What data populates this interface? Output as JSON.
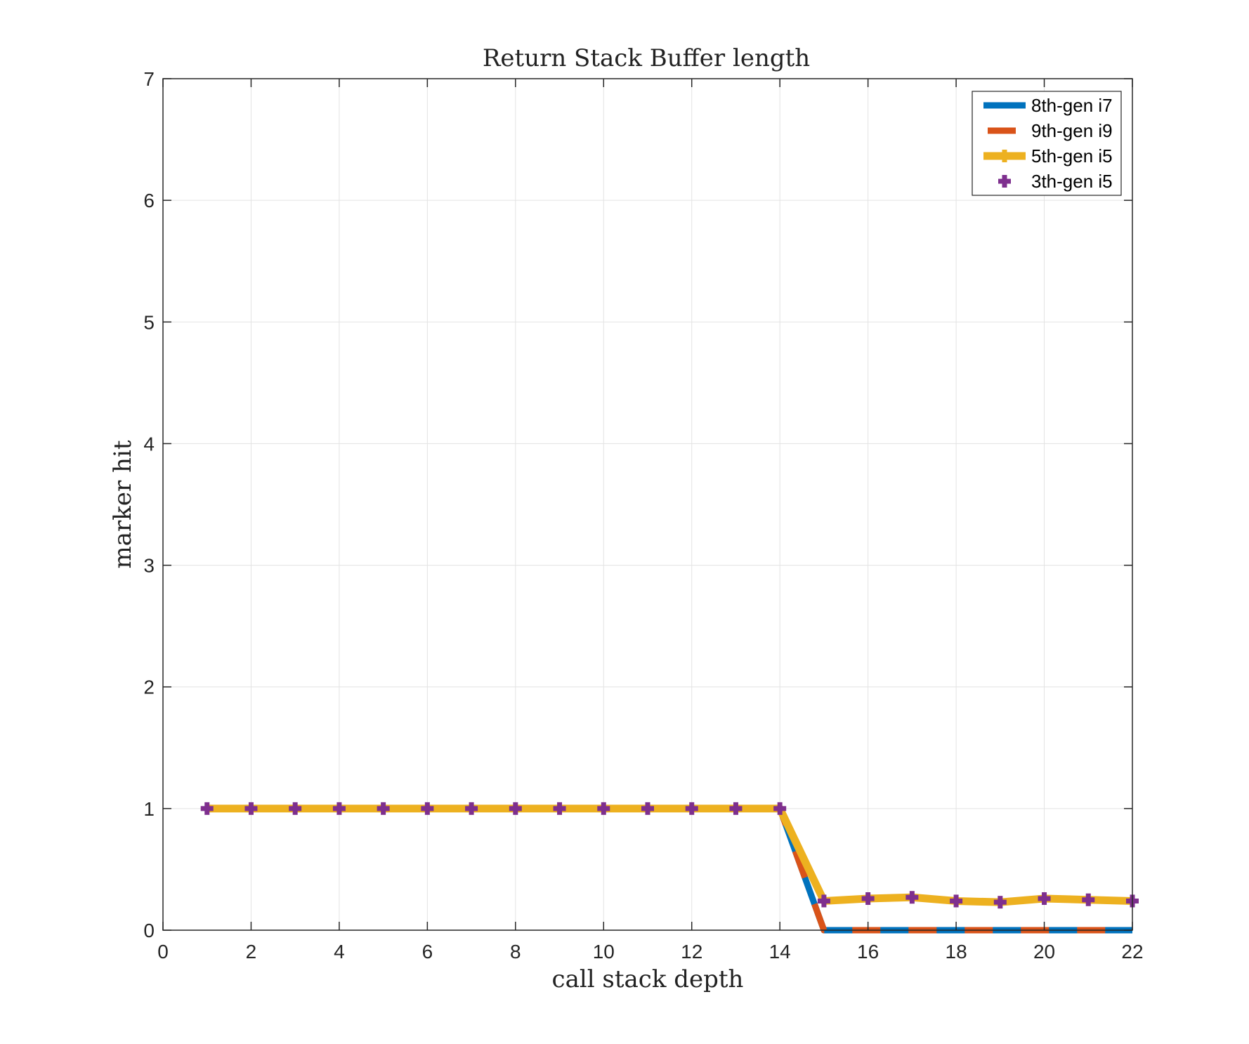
{
  "chart_data": {
    "type": "line",
    "title": "Return Stack Buffer length",
    "xlabel": "call stack depth",
    "ylabel": "marker hit",
    "xlim": [
      0,
      22
    ],
    "ylim": [
      0,
      7
    ],
    "xticks": [
      0,
      2,
      4,
      6,
      8,
      10,
      12,
      14,
      16,
      18,
      20,
      22
    ],
    "yticks": [
      0,
      1,
      2,
      3,
      4,
      5,
      6,
      7
    ],
    "grid": true,
    "legend_position": "top-right",
    "x": [
      1,
      2,
      3,
      4,
      5,
      6,
      7,
      8,
      9,
      10,
      11,
      12,
      13,
      14,
      15,
      16,
      17,
      18,
      19,
      20,
      21,
      22
    ],
    "series": [
      {
        "name": "8th-gen i7",
        "color": "#0072BD",
        "style": "solid",
        "marker": "none",
        "values": [
          1,
          1,
          1,
          1,
          1,
          1,
          1,
          1,
          1,
          1,
          1,
          1,
          1,
          1,
          0,
          0,
          0,
          0,
          0,
          0,
          0,
          0
        ]
      },
      {
        "name": "9th-gen i9",
        "color": "#D95319",
        "style": "dashed",
        "marker": "none",
        "values": [
          1,
          1,
          1,
          1,
          1,
          1,
          1,
          1,
          1,
          1,
          1,
          1,
          1,
          1,
          0,
          0,
          0,
          0,
          0,
          0,
          0,
          0
        ]
      },
      {
        "name": "5th-gen i5",
        "color": "#EDB120",
        "style": "solid",
        "marker": "plus",
        "values": [
          1,
          1,
          1,
          1,
          1,
          1,
          1,
          1,
          1,
          1,
          1,
          1,
          1,
          1,
          0.24,
          0.26,
          0.27,
          0.24,
          0.23,
          0.26,
          0.25,
          0.24
        ]
      },
      {
        "name": "3th-gen i5",
        "color": "#7E2F8E",
        "style": "none",
        "marker": "plus",
        "values": [
          1,
          1,
          1,
          1,
          1,
          1,
          1,
          1,
          1,
          1,
          1,
          1,
          1,
          1,
          0.24,
          0.26,
          0.27,
          0.24,
          0.23,
          0.26,
          0.25,
          0.24
        ]
      }
    ]
  }
}
